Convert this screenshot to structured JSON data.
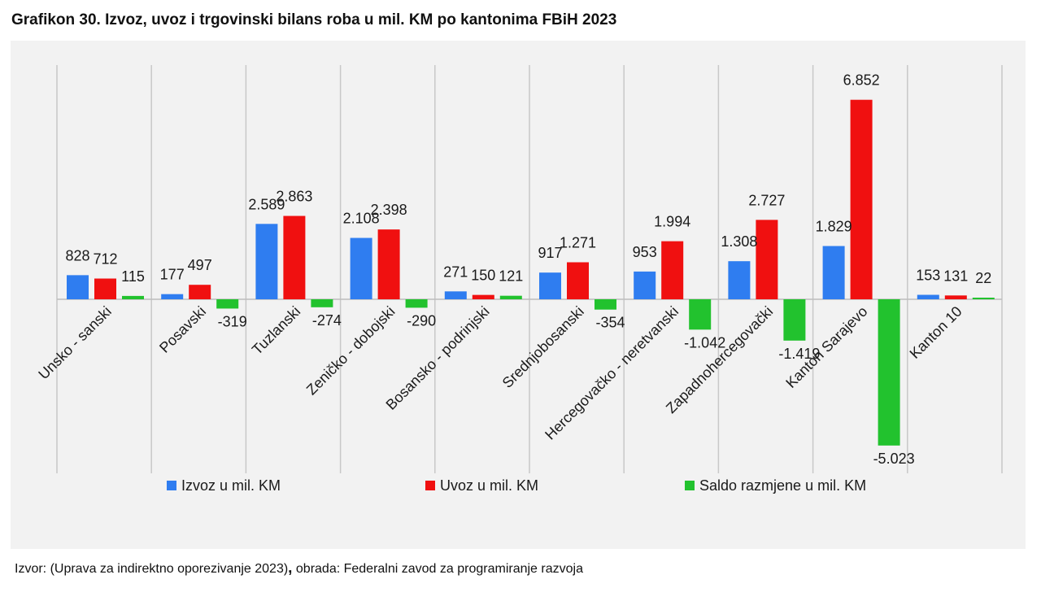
{
  "title": "Grafikon 30. Izvoz, uvoz i trgovinski bilans roba u mil. KM po kantonima FBiH 2023",
  "source": {
    "left": "Izvor: (Uprava za indirektno oporezivanje 2023)",
    "separator": ",",
    "right": " obrada: Federalni zavod za programiranje razvoja"
  },
  "colors": {
    "izvoz": "#2f7df0",
    "uvoz": "#f01010",
    "saldo": "#22c22e",
    "panel": "#f2f2f2",
    "gridline": "#c8c8c8"
  },
  "chart_data": {
    "type": "bar",
    "title": "Grafikon 30. Izvoz, uvoz i trgovinski bilans roba u mil. KM po kantonima FBiH 2023",
    "categories": [
      "Unsko - sanski",
      "Posavski",
      "Tuzlanski",
      "Zeničko - dobojski",
      "Bosansko - podrinjski",
      "Srednjobosanski",
      "Hercegovačko - neretvanski",
      "Zapadnohercegovački",
      "Kanton Sarajevo",
      "Kanton 10"
    ],
    "series": [
      {
        "name": "Izvoz u mil. KM",
        "color": "#2f7df0",
        "values": [
          828,
          177,
          2589,
          2108,
          271,
          917,
          953,
          1308,
          1829,
          153
        ],
        "labels": [
          "828",
          "177",
          "2.589",
          "2.108",
          "271",
          "917",
          "953",
          "1.308",
          "1.829",
          "153"
        ]
      },
      {
        "name": "Uvoz u mil. KM",
        "color": "#f01010",
        "values": [
          712,
          497,
          2863,
          2398,
          150,
          1271,
          1994,
          2727,
          6852,
          131
        ],
        "labels": [
          "712",
          "497",
          "2.863",
          "2.398",
          "150",
          "1.271",
          "1.994",
          "2.727",
          "6.852",
          "131"
        ]
      },
      {
        "name": "Saldo razmjene u mil. KM",
        "color": "#22c22e",
        "values": [
          115,
          -319,
          -274,
          -290,
          121,
          -354,
          -1042,
          -1419,
          -5023,
          22
        ],
        "labels": [
          "115",
          "-319",
          "-274",
          "-290",
          "121",
          "-354",
          "-1.042",
          "-1.419",
          "-5.023",
          "22"
        ]
      }
    ],
    "ylim": [
      -5900,
      8000
    ],
    "legend": "bottom",
    "grid": "vertical separators between categories"
  }
}
